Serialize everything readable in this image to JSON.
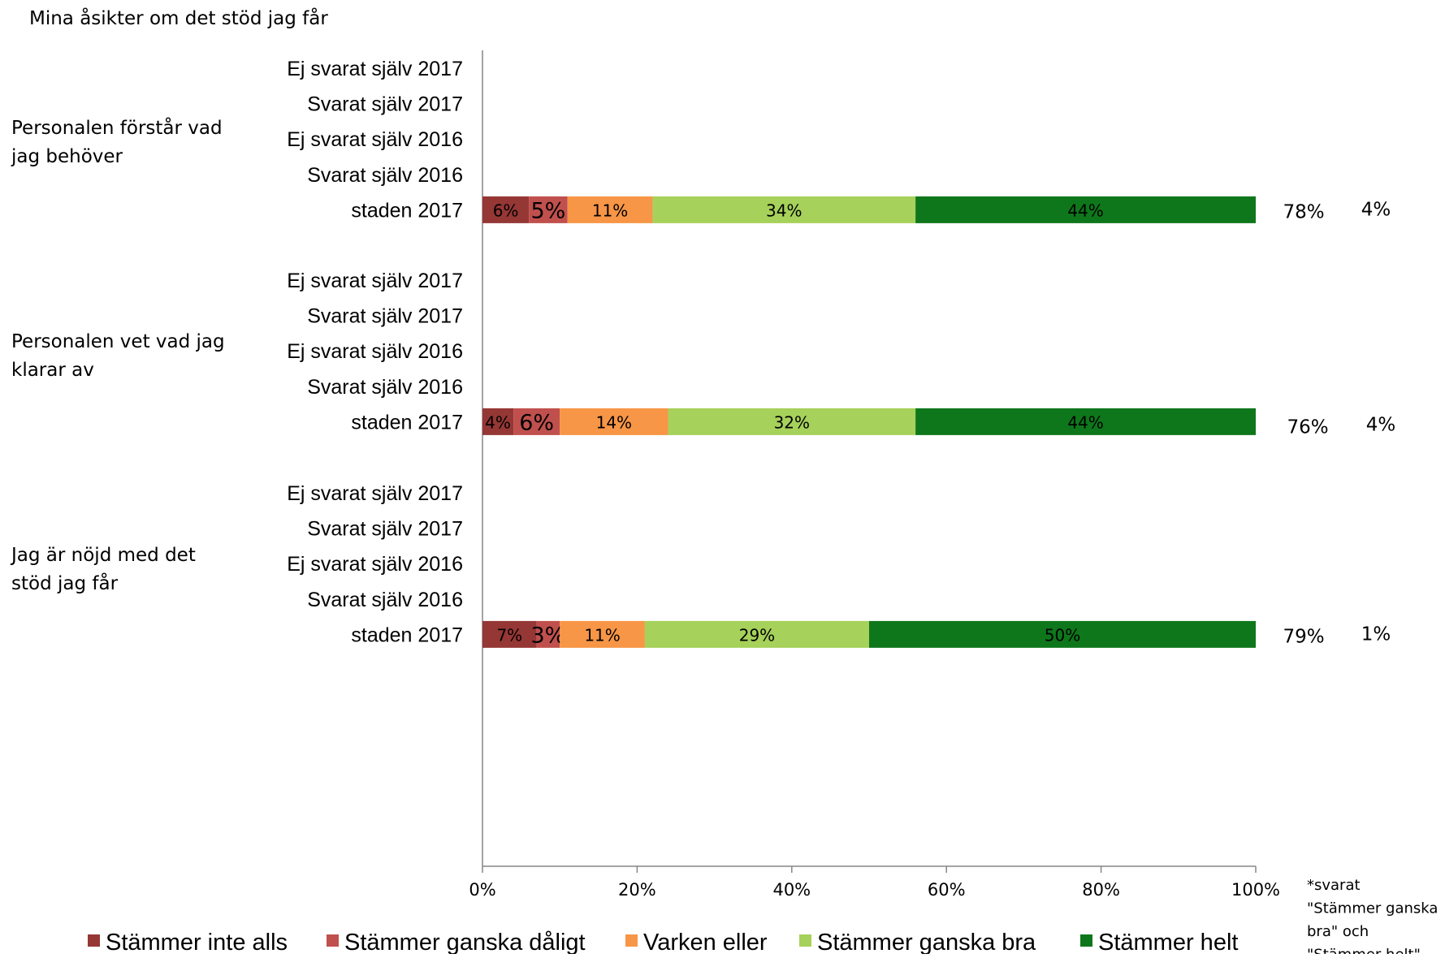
{
  "chart_data": {
    "type": "bar",
    "orientation": "horizontal",
    "stacked": true,
    "title": "Mina åsikter om det stöd jag får",
    "xlim": [
      0,
      100
    ],
    "x_ticks": [
      "0%",
      "20%",
      "40%",
      "60%",
      "80%",
      "100%"
    ],
    "grid": false,
    "legend_position": "bottom",
    "series": [
      {
        "name": "Stämmer inte alls",
        "color": "#953735"
      },
      {
        "name": "Stämmer ganska dåligt",
        "color": "#c0504d"
      },
      {
        "name": "Varken eller",
        "color": "#f79646"
      },
      {
        "name": "Stämmer ganska bra",
        "color": "#a6d15a"
      },
      {
        "name": "Stämmer helt",
        "color": "#0e771b"
      }
    ],
    "groups": [
      {
        "label": "Personalen förstår vad jag behöver",
        "label_lines": [
          "Personalen förstår vad",
          "jag behöver"
        ],
        "rows": [
          {
            "label": "Ej svarat själv 2017",
            "values": null
          },
          {
            "label": "Svarat själv 2017",
            "values": null
          },
          {
            "label": "Ej svarat själv 2016",
            "values": null
          },
          {
            "label": "Svarat själv 2016",
            "values": null
          },
          {
            "label": "staden 2017",
            "values": [
              6,
              5,
              11,
              34,
              44
            ],
            "value_labels": [
              "6%",
              "5%",
              "11%",
              "34%",
              "44%"
            ],
            "side_values": [
              "78%",
              "4%"
            ]
          }
        ]
      },
      {
        "label": "Personalen vet vad jag klarar av",
        "label_lines": [
          "Personalen vet vad jag",
          "klarar av"
        ],
        "rows": [
          {
            "label": "Ej svarat själv 2017",
            "values": null
          },
          {
            "label": "Svarat själv 2017",
            "values": null
          },
          {
            "label": "Ej svarat själv 2016",
            "values": null
          },
          {
            "label": "Svarat själv 2016",
            "values": null
          },
          {
            "label": "staden 2017",
            "values": [
              4,
              6,
              14,
              32,
              44
            ],
            "value_labels": [
              "4%",
              "6%",
              "14%",
              "32%",
              "44%"
            ],
            "side_values": [
              "76%",
              "4%"
            ]
          }
        ]
      },
      {
        "label": "Jag är nöjd med det stöd jag får",
        "label_lines": [
          "Jag är nöjd med det",
          "stöd jag får"
        ],
        "rows": [
          {
            "label": "Ej svarat själv 2017",
            "values": null
          },
          {
            "label": "Svarat själv 2017",
            "values": null
          },
          {
            "label": "Ej svarat själv 2016",
            "values": null
          },
          {
            "label": "Svarat själv 2016",
            "values": null
          },
          {
            "label": "staden 2017",
            "values": [
              7,
              3,
              11,
              29,
              50
            ],
            "value_labels": [
              "7%",
              "3%",
              "11%",
              "29%",
              "50%"
            ],
            "side_values": [
              "79%",
              "1%"
            ]
          }
        ]
      }
    ],
    "footnote_lines": [
      "*svarat",
      "\"Stämmer ganska",
      "bra\" och",
      "\"Stämmer helt\""
    ]
  }
}
